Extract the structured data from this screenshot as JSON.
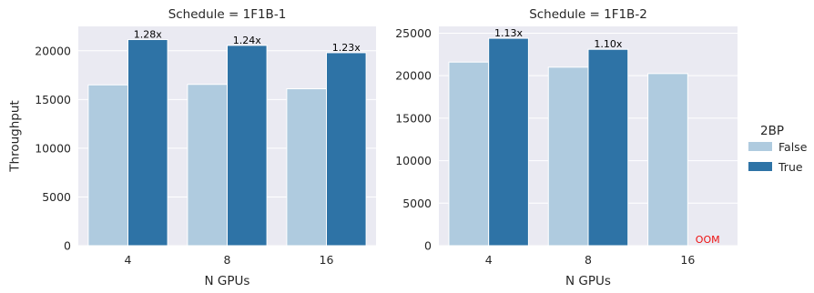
{
  "chart_data": [
    {
      "type": "bar",
      "title": "Schedule = 1F1B-1",
      "xlabel": "N GPUs",
      "ylabel": "Throughput",
      "categories": [
        "4",
        "8",
        "16"
      ],
      "ylim": [
        0,
        22500
      ],
      "yticks": [
        0,
        5000,
        10000,
        15000,
        20000
      ],
      "grid": true,
      "series": [
        {
          "name": "False",
          "values": [
            16500,
            16550,
            16100
          ]
        },
        {
          "name": "True",
          "values": [
            21150,
            20550,
            19800
          ]
        }
      ],
      "annotations": [
        {
          "category": "4",
          "series": "True",
          "text": "1.28x"
        },
        {
          "category": "8",
          "series": "True",
          "text": "1.24x"
        },
        {
          "category": "16",
          "series": "True",
          "text": "1.23x"
        }
      ]
    },
    {
      "type": "bar",
      "title": "Schedule = 1F1B-2",
      "xlabel": "N GPUs",
      "ylabel": "",
      "categories": [
        "4",
        "8",
        "16"
      ],
      "ylim": [
        0,
        25800
      ],
      "yticks": [
        0,
        5000,
        10000,
        15000,
        20000,
        25000
      ],
      "grid": true,
      "series": [
        {
          "name": "False",
          "values": [
            21600,
            21000,
            20250
          ]
        },
        {
          "name": "True",
          "values": [
            24400,
            23100,
            null
          ]
        }
      ],
      "annotations": [
        {
          "category": "4",
          "series": "True",
          "text": "1.13x"
        },
        {
          "category": "8",
          "series": "True",
          "text": "1.10x"
        },
        {
          "category": "16",
          "series": "True",
          "text": "OOM",
          "color": "#ee1111"
        }
      ]
    }
  ],
  "legend": {
    "title": "2BP",
    "placement": "right",
    "entries": [
      {
        "label": "False",
        "color": "#afcbdf"
      },
      {
        "label": "True",
        "color": "#2e73a6"
      }
    ]
  },
  "colors": {
    "background": "#eaeaf2",
    "grid": "#ffffff",
    "false": "#afcbdf",
    "true": "#2e73a6",
    "oom": "#ee1111"
  }
}
